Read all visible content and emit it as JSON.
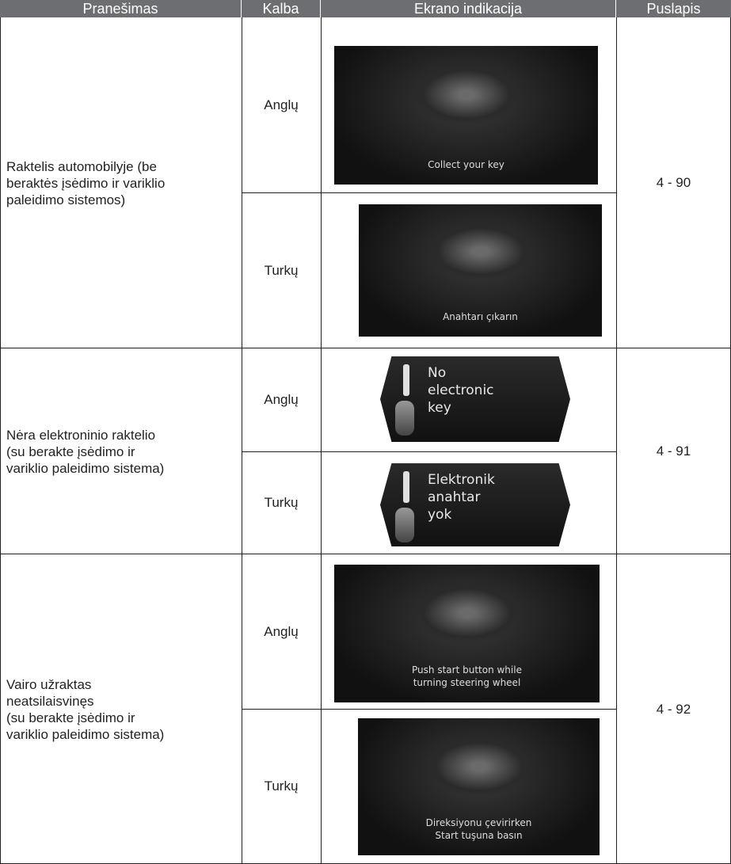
{
  "table": {
    "header": [
      "Pranešimas",
      "Kalba",
      "Ekrano indikacija",
      "Puslapis"
    ],
    "groups": [
      {
        "message": [
          "Raktelis automobilyje (be",
          "beraktės įsėdimo ir variklio",
          "paleidimo sistemos)"
        ],
        "page": "4 - 90",
        "rows": [
          {
            "language": "Anglų",
            "screen_text": [
              "Collect your key"
            ]
          },
          {
            "language": "Turkų",
            "screen_text": [
              "Anahtarı çıkarın"
            ]
          }
        ]
      },
      {
        "message": [
          "Nėra elektroninio raktelio",
          "(su berakte įsėdimo ir",
          "variklio paleidimo sistema)"
        ],
        "page": "4 - 91",
        "rows": [
          {
            "language": "Anglų",
            "screen_text": [
              "No",
              "electronic",
              "key"
            ]
          },
          {
            "language": "Turkų",
            "screen_text": [
              "Elektronik",
              "anahtar",
              "yok"
            ]
          }
        ]
      },
      {
        "message": [
          "Vairo užraktas",
          "neatsilaisvinęs",
          "(su berakte įsėdimo ir",
          "variklio paleidimo sistema)"
        ],
        "page": "4 - 92",
        "rows": [
          {
            "language": "Anglų",
            "screen_text": [
              "Push start button while",
              "turning steering wheel"
            ]
          },
          {
            "language": "Turkų",
            "screen_text": [
              "Direksiyonu çevirirken",
              "Start tuşuna basın"
            ]
          }
        ]
      }
    ]
  }
}
